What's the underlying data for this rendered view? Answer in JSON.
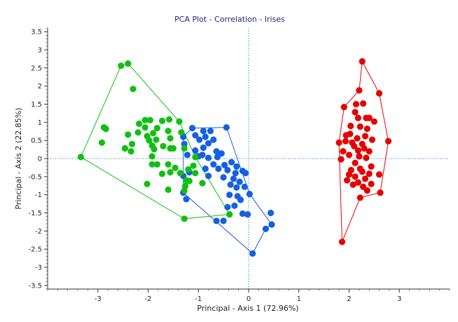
{
  "chart_data": {
    "type": "scatter",
    "title": "PCA Plot - Correlation - Irises",
    "xlabel": "Principal - Axis 1 (72.96%)",
    "ylabel": "Principal - Axis 2 (22.85%)",
    "xlim": [
      -4,
      4
    ],
    "ylim": [
      -3.6,
      3.6
    ],
    "xticks": [
      -3,
      -2,
      -1,
      0,
      1,
      2,
      3
    ],
    "yticks": [
      3.5,
      3,
      2.5,
      2,
      1.5,
      1,
      0.5,
      0,
      -0.5,
      -1,
      -1.5,
      -2,
      -2.5,
      -3,
      -3.5
    ],
    "reference_lines": {
      "x": 0,
      "y": 0
    },
    "grid": false,
    "series": [
      {
        "color": "#e60000",
        "points": [
          [
            2.26,
            2.68
          ],
          [
            2.2,
            1.88
          ],
          [
            2.6,
            1.8
          ],
          [
            2.28,
            1.52
          ],
          [
            2.14,
            1.5
          ],
          [
            1.9,
            1.42
          ],
          [
            2.12,
            1.28
          ],
          [
            2.18,
            1.12
          ],
          [
            2.4,
            1.12
          ],
          [
            2.34,
            1.12
          ],
          [
            2.5,
            1.02
          ],
          [
            2.03,
            0.9
          ],
          [
            2.22,
            0.88
          ],
          [
            2.36,
            0.82
          ],
          [
            2.02,
            0.68
          ],
          [
            1.94,
            0.64
          ],
          [
            2.32,
            0.62
          ],
          [
            2.16,
            0.56
          ],
          [
            1.93,
            0.48
          ],
          [
            2.46,
            0.52
          ],
          [
            2.78,
            0.48
          ],
          [
            2.06,
            0.44
          ],
          [
            1.8,
            0.44
          ],
          [
            2.26,
            0.4
          ],
          [
            2.1,
            0.34
          ],
          [
            2.3,
            0.28
          ],
          [
            2.18,
            0.22
          ],
          [
            2.4,
            0.2
          ],
          [
            1.88,
            0.2
          ],
          [
            2.0,
            0.1
          ],
          [
            2.2,
            0.06
          ],
          [
            2.34,
            0.02
          ],
          [
            1.84,
            -0.02
          ],
          [
            2.12,
            -0.12
          ],
          [
            2.44,
            -0.22
          ],
          [
            2.22,
            -0.28
          ],
          [
            2.04,
            -0.32
          ],
          [
            2.26,
            -0.36
          ],
          [
            2.4,
            -0.42
          ],
          [
            2.0,
            -0.44
          ],
          [
            2.6,
            -0.44
          ],
          [
            2.12,
            -0.5
          ],
          [
            2.32,
            -0.56
          ],
          [
            1.96,
            -0.6
          ],
          [
            2.18,
            -0.66
          ],
          [
            2.44,
            -0.7
          ],
          [
            2.08,
            -0.72
          ],
          [
            2.28,
            -0.78
          ],
          [
            2.62,
            -0.94
          ],
          [
            2.36,
            -0.88
          ],
          [
            2.22,
            -1.08
          ],
          [
            1.86,
            -2.3
          ]
        ],
        "hull": [
          [
            2.26,
            2.68
          ],
          [
            2.6,
            1.8
          ],
          [
            2.78,
            0.48
          ],
          [
            2.62,
            -0.94
          ],
          [
            2.22,
            -1.08
          ],
          [
            1.86,
            -2.3
          ],
          [
            1.8,
            0.44
          ],
          [
            1.9,
            1.42
          ],
          [
            2.2,
            1.88
          ]
        ]
      },
      {
        "color": "#1560e0",
        "points": [
          [
            -1.12,
            0.84
          ],
          [
            -0.9,
            0.76
          ],
          [
            -0.76,
            0.76
          ],
          [
            -0.44,
            0.86
          ],
          [
            -1.06,
            0.64
          ],
          [
            -0.86,
            0.6
          ],
          [
            -0.7,
            0.52
          ],
          [
            -0.98,
            0.52
          ],
          [
            -0.8,
            0.42
          ],
          [
            -1.3,
            0.6
          ],
          [
            -1.28,
            0.4
          ],
          [
            -1.22,
            0.1
          ],
          [
            -0.9,
            0.3
          ],
          [
            -0.64,
            0.2
          ],
          [
            -0.54,
            0.14
          ],
          [
            -1.06,
            0.22
          ],
          [
            -0.92,
            0.1
          ],
          [
            -1.0,
            0.06
          ],
          [
            -0.8,
            0.02
          ],
          [
            -0.62,
            0.04
          ],
          [
            -0.7,
            -0.16
          ],
          [
            -0.48,
            -0.18
          ],
          [
            -0.34,
            -0.1
          ],
          [
            -0.24,
            -0.22
          ],
          [
            -0.6,
            -0.28
          ],
          [
            -0.86,
            -0.28
          ],
          [
            -0.42,
            -0.32
          ],
          [
            -0.26,
            -0.4
          ],
          [
            -0.12,
            -0.34
          ],
          [
            -0.06,
            -0.4
          ],
          [
            -1.18,
            -0.38
          ],
          [
            -1.3,
            -0.48
          ],
          [
            -0.5,
            -0.52
          ],
          [
            -0.3,
            -0.56
          ],
          [
            -0.18,
            -0.64
          ],
          [
            -0.36,
            -0.72
          ],
          [
            -0.24,
            -0.8
          ],
          [
            -0.08,
            -0.78
          ],
          [
            -0.22,
            -1.04
          ],
          [
            -0.38,
            -1.0
          ],
          [
            -0.16,
            -1.14
          ],
          [
            0.02,
            -0.98
          ],
          [
            -1.3,
            -0.94
          ],
          [
            -1.24,
            -1.12
          ],
          [
            -0.28,
            -1.3
          ],
          [
            -0.42,
            -1.34
          ],
          [
            -0.12,
            -1.52
          ],
          [
            -0.02,
            -1.54
          ],
          [
            0.44,
            -1.5
          ],
          [
            -0.5,
            -1.72
          ],
          [
            -0.64,
            -1.72
          ],
          [
            0.46,
            -1.82
          ],
          [
            0.34,
            -1.94
          ],
          [
            0.08,
            -2.62
          ],
          [
            -0.8,
            -0.48
          ]
        ],
        "hull": [
          [
            -1.3,
            0.6
          ],
          [
            -1.12,
            0.84
          ],
          [
            -0.44,
            0.86
          ],
          [
            0.02,
            -0.98
          ],
          [
            0.46,
            -1.82
          ],
          [
            0.34,
            -1.94
          ],
          [
            0.08,
            -2.62
          ],
          [
            -1.3,
            -0.94
          ]
        ]
      },
      {
        "color": "#10c010",
        "points": [
          [
            -2.4,
            2.62
          ],
          [
            -2.54,
            2.56
          ],
          [
            -2.3,
            1.92
          ],
          [
            -1.96,
            1.06
          ],
          [
            -2.06,
            1.06
          ],
          [
            -1.58,
            1.08
          ],
          [
            -1.72,
            1.04
          ],
          [
            -2.18,
            0.96
          ],
          [
            -1.38,
            1.02
          ],
          [
            -2.88,
            0.86
          ],
          [
            -2.84,
            0.82
          ],
          [
            -2.06,
            0.86
          ],
          [
            -1.82,
            0.84
          ],
          [
            -1.6,
            0.76
          ],
          [
            -1.9,
            0.7
          ],
          [
            -2.2,
            0.72
          ],
          [
            -1.34,
            0.72
          ],
          [
            -2.4,
            0.66
          ],
          [
            -2.02,
            0.62
          ],
          [
            -1.56,
            0.56
          ],
          [
            -1.84,
            0.52
          ],
          [
            -1.98,
            0.5
          ],
          [
            -2.32,
            0.4
          ],
          [
            -1.92,
            0.36
          ],
          [
            -1.7,
            0.34
          ],
          [
            -2.92,
            0.44
          ],
          [
            -1.56,
            0.28
          ],
          [
            -1.5,
            0.28
          ],
          [
            -2.46,
            0.28
          ],
          [
            -1.88,
            0.26
          ],
          [
            -1.28,
            0.28
          ],
          [
            -2.34,
            0.2
          ],
          [
            -1.92,
            0.06
          ],
          [
            -3.34,
            0.04
          ],
          [
            -1.06,
            0.04
          ],
          [
            -1.92,
            -0.16
          ],
          [
            -1.82,
            -0.16
          ],
          [
            -1.6,
            -0.16
          ],
          [
            -1.1,
            -0.2
          ],
          [
            -1.46,
            -0.26
          ],
          [
            -1.2,
            -0.3
          ],
          [
            -1.56,
            -0.38
          ],
          [
            -1.36,
            -0.4
          ],
          [
            -1.06,
            -0.4
          ],
          [
            -1.72,
            -0.42
          ],
          [
            -1.24,
            -0.6
          ],
          [
            -1.18,
            -0.62
          ],
          [
            -2.02,
            -0.7
          ],
          [
            -0.92,
            -0.68
          ],
          [
            -1.6,
            -0.86
          ],
          [
            -1.28,
            -0.88
          ],
          [
            -0.38,
            -1.54
          ],
          [
            -1.28,
            -1.66
          ],
          [
            -1.26,
            -0.76
          ]
        ],
        "hull": [
          [
            -2.54,
            2.56
          ],
          [
            -2.4,
            2.62
          ],
          [
            -1.38,
            1.02
          ],
          [
            -1.06,
            0.04
          ],
          [
            -0.38,
            -1.54
          ],
          [
            -1.28,
            -1.66
          ],
          [
            -3.34,
            0.04
          ]
        ]
      }
    ]
  }
}
